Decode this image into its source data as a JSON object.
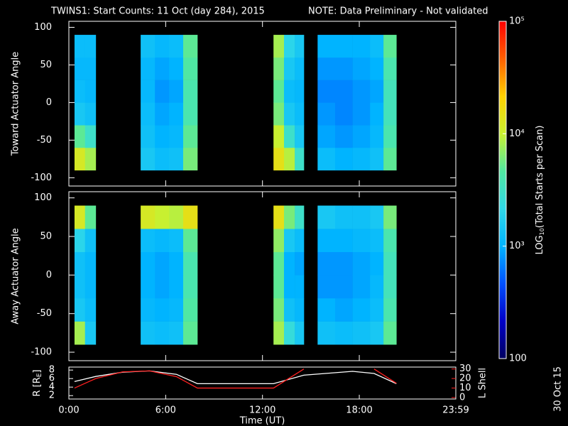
{
  "title": "TWINS1: Start Counts: 11 Oct (day 284), 2015",
  "note": "NOTE: Data Preliminary - Not validated",
  "note_color": "#ff2020",
  "date_stamp": "30 Oct 15",
  "colorbar": {
    "label": [
      "LOG",
      "10",
      "(Total Starts per Scan)"
    ],
    "log": true,
    "zlim": [
      100,
      100000
    ],
    "ticks": [
      100,
      {
        "value": 1000,
        "label": "10³"
      },
      {
        "value": 10000,
        "label": "10⁴"
      },
      {
        "value": 100000,
        "label": "10⁵"
      }
    ],
    "colorscale": [
      "#000060",
      "#0000c8",
      "#0050ff",
      "#00b4ff",
      "#30d8e8",
      "#50e8a0",
      "#c8f030",
      "#ffd000",
      "#ff6000",
      "#ff0000"
    ]
  },
  "chart_data": [
    {
      "type": "heatmap",
      "ylabel": "Toward Actuator Angle",
      "time_bins": [
        21,
        60,
        100,
        267,
        320,
        373,
        425,
        478,
        761,
        800,
        840,
        874,
        925,
        990,
        1055,
        1120,
        1170,
        1218
      ],
      "angle_bins": [
        -90,
        -60,
        -30,
        0,
        30,
        60,
        90
      ],
      "values": [
        [
          12000,
          8000,
          null,
          1500,
          1200,
          1300,
          6000,
          null,
          15000,
          9000,
          3000,
          null,
          1200,
          1000,
          1100,
          1300,
          5000
        ],
        [
          5000,
          3000,
          null,
          1300,
          1000,
          1100,
          5000,
          null,
          10000,
          3000,
          1500,
          null,
          900,
          800,
          900,
          1100,
          4000
        ],
        [
          1500,
          1300,
          null,
          1200,
          900,
          1000,
          4000,
          null,
          6000,
          1500,
          1200,
          null,
          800,
          700,
          800,
          1000,
          3500
        ],
        [
          1200,
          1100,
          null,
          1100,
          800,
          900,
          4000,
          null,
          5000,
          1200,
          1100,
          null,
          700,
          700,
          800,
          900,
          3500
        ],
        [
          1100,
          1100,
          null,
          1100,
          900,
          1000,
          4500,
          null,
          6000,
          1500,
          1200,
          null,
          800,
          800,
          900,
          1000,
          4000
        ],
        [
          1200,
          1200,
          null,
          1300,
          1100,
          1200,
          5000,
          null,
          8000,
          2000,
          1500,
          null,
          1000,
          1000,
          1000,
          1200,
          5000
        ]
      ],
      "xlim": [
        0,
        1439
      ],
      "xticks": [
        0,
        360,
        720,
        1080,
        1439
      ],
      "ylim": [
        -111,
        108
      ],
      "yticks": [
        -100,
        -50,
        0,
        50,
        100
      ]
    },
    {
      "type": "heatmap",
      "ylabel": "Away Actuator Angle",
      "time_bins": [
        21,
        60,
        100,
        267,
        320,
        373,
        425,
        478,
        761,
        800,
        840,
        874,
        925,
        990,
        1055,
        1120,
        1170,
        1218
      ],
      "angle_bins": [
        -90,
        -60,
        -30,
        0,
        30,
        60,
        90
      ],
      "values": [
        [
          8000,
          1500,
          null,
          1300,
          1200,
          1300,
          5000,
          null,
          8000,
          2500,
          1500,
          null,
          1300,
          1200,
          1300,
          1500,
          5000
        ],
        [
          1500,
          1200,
          null,
          1100,
          1000,
          1100,
          4500,
          null,
          6000,
          1300,
          1100,
          null,
          1000,
          900,
          1000,
          1200,
          4000
        ],
        [
          1300,
          1100,
          null,
          1000,
          900,
          1000,
          4000,
          null,
          5000,
          1000,
          1000,
          null,
          800,
          800,
          900,
          1100,
          3500
        ],
        [
          1300,
          1100,
          null,
          1000,
          900,
          1000,
          4000,
          null,
          5000,
          1000,
          900,
          null,
          800,
          800,
          900,
          1000,
          3500
        ],
        [
          2000,
          1300,
          null,
          1200,
          1100,
          1200,
          5000,
          null,
          7000,
          1500,
          1200,
          null,
          1000,
          1000,
          1100,
          1200,
          4000
        ],
        [
          12000,
          5000,
          null,
          12000,
          10000,
          9000,
          15000,
          null,
          15000,
          6000,
          3000,
          null,
          1500,
          1300,
          1300,
          1500,
          6000
        ]
      ],
      "xlim": [
        0,
        1439
      ],
      "xticks": [
        0,
        360,
        720,
        1080,
        1439
      ],
      "ylim": [
        -111,
        108
      ],
      "yticks": [
        -100,
        -50,
        0,
        50,
        100
      ]
    },
    {
      "type": "line",
      "ylabel": [
        "R [R",
        "E",
        "]"
      ],
      "y2label": "L Shell",
      "y2color": "#ff2020",
      "xlabel": "Time (UT)",
      "x": [
        21,
        100,
        200,
        300,
        400,
        478,
        761,
        874,
        1055,
        1135,
        1218
      ],
      "series": [
        {
          "color": "#ffffff",
          "values": [
            5.3,
            6.5,
            7.5,
            7.8,
            7.0,
            4.8,
            4.8,
            6.8,
            7.7,
            7.2,
            4.8
          ]
        },
        {
          "color": "#ff2020",
          "axis": "y2",
          "values": [
            10,
            20,
            27,
            28,
            22,
            10,
            10,
            30,
            null,
            30,
            15
          ]
        }
      ],
      "xlim": [
        0,
        1439
      ],
      "xticks": [
        {
          "value": 0,
          "label": "0:00"
        },
        {
          "value": 360,
          "label": "6:00"
        },
        {
          "value": 720,
          "label": "12:00"
        },
        {
          "value": 1080,
          "label": "18:00"
        },
        {
          "value": 1439,
          "label": "23:59"
        }
      ],
      "ylim": [
        1.2,
        8.7
      ],
      "yticks": [
        2,
        4,
        6,
        8
      ],
      "y2lim": [
        -1.5,
        32
      ],
      "y2ticks": [
        0,
        10,
        20,
        30
      ]
    }
  ]
}
